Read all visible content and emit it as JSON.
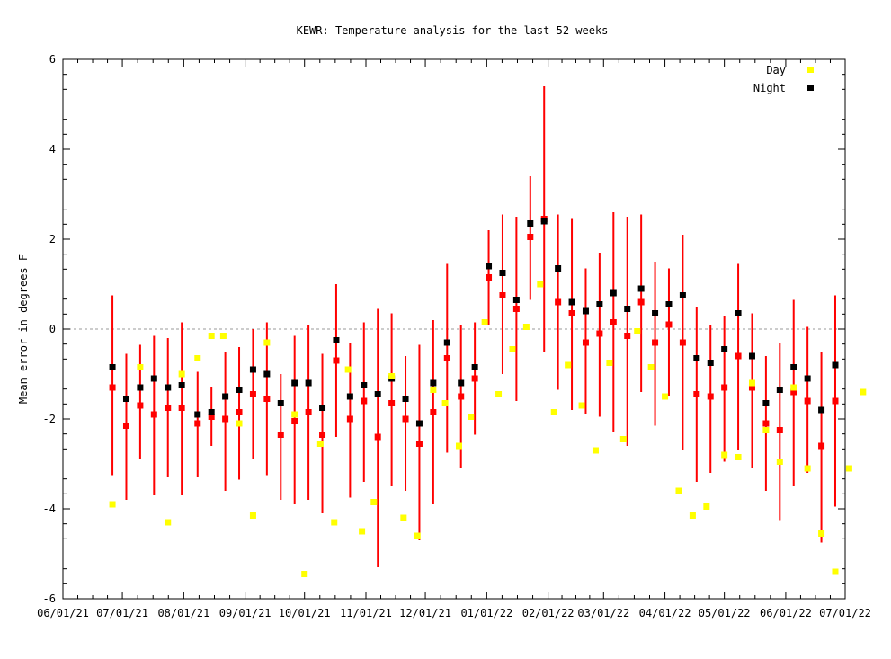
{
  "chart_data": {
    "type": "scatter",
    "title": "KEWR: Temperature analysis for the last 52 weeks",
    "ylabel": "Mean error in degrees F",
    "xlabel": "",
    "ylim": [
      -6,
      6
    ],
    "yticks": [
      -6,
      -4,
      -2,
      0,
      2,
      4,
      6
    ],
    "xlim": [
      "2021-06-01",
      "2022-07-01"
    ],
    "xticks": [
      "06/01/21",
      "07/01/21",
      "08/01/21",
      "09/01/21",
      "10/01/21",
      "11/01/21",
      "12/01/21",
      "01/01/22",
      "02/01/22",
      "03/01/22",
      "04/01/22",
      "05/01/22",
      "06/01/22",
      "07/01/22"
    ],
    "xtick_dates": [
      "2021-06-01",
      "2021-07-01",
      "2021-08-01",
      "2021-09-01",
      "2021-10-01",
      "2021-11-01",
      "2021-12-01",
      "2022-01-01",
      "2022-02-01",
      "2022-03-01",
      "2022-04-01",
      "2022-05-01",
      "2022-06-01",
      "2022-07-01"
    ],
    "zero_line": 0,
    "grid": false,
    "legend_position": "top-right",
    "colors": {
      "day": "#ffff00",
      "night": "#000000",
      "mean": "#ff0000",
      "errorbar": "#ff0000",
      "zero_line": "#999999"
    },
    "series": [
      {
        "name": "Day",
        "x": [
          "2021-06-26",
          "2021-07-10",
          "2021-07-24",
          "2021-07-31",
          "2021-08-08",
          "2021-08-15",
          "2021-08-21",
          "2021-08-29",
          "2021-09-05",
          "2021-09-12",
          "2021-09-26",
          "2021-10-01",
          "2021-10-09",
          "2021-10-16",
          "2021-10-23",
          "2021-10-30",
          "2021-11-05",
          "2021-11-14",
          "2021-11-20",
          "2021-11-27",
          "2021-12-05",
          "2021-12-11",
          "2021-12-18",
          "2021-12-24",
          "2021-12-31",
          "2022-01-07",
          "2022-01-14",
          "2022-01-21",
          "2022-01-28",
          "2022-02-04",
          "2022-02-11",
          "2022-02-18",
          "2022-02-25",
          "2022-03-04",
          "2022-03-11",
          "2022-03-18",
          "2022-03-25",
          "2022-04-01",
          "2022-04-08",
          "2022-04-15",
          "2022-04-22",
          "2022-05-01",
          "2022-05-08",
          "2022-05-15",
          "2022-05-22",
          "2022-05-29",
          "2022-06-05",
          "2022-06-12",
          "2022-06-19",
          "2022-06-26",
          "2022-07-03",
          "2022-07-10"
        ],
        "y": [
          -3.9,
          -0.85,
          -4.3,
          -1.0,
          -0.65,
          -0.15,
          -0.15,
          -2.1,
          -4.15,
          -0.3,
          -1.9,
          -5.45,
          -2.55,
          -4.3,
          -0.9,
          -4.5,
          -3.85,
          -1.05,
          -4.2,
          -4.6,
          -1.35,
          -1.65,
          -2.6,
          -1.95,
          0.15,
          -1.45,
          -0.45,
          0.05,
          1.0,
          -1.85,
          -0.8,
          -1.7,
          -2.7,
          -0.75,
          -2.45,
          -0.05,
          -0.85,
          -1.5,
          -3.6,
          -4.15,
          -3.95,
          -2.8,
          -2.85,
          -1.2,
          -2.25,
          -2.95,
          -1.3,
          -3.1,
          -4.55,
          -5.4,
          -3.1,
          -1.4
        ]
      },
      {
        "name": "Night",
        "x": [
          "2021-06-26",
          "2021-07-03",
          "2021-07-10",
          "2021-07-17",
          "2021-07-24",
          "2021-07-31",
          "2021-08-08",
          "2021-08-15",
          "2021-08-22",
          "2021-08-29",
          "2021-09-05",
          "2021-09-12",
          "2021-09-19",
          "2021-09-26",
          "2021-10-03",
          "2021-10-10",
          "2021-10-17",
          "2021-10-24",
          "2021-10-31",
          "2021-11-07",
          "2021-11-14",
          "2021-11-21",
          "2021-11-28",
          "2021-12-05",
          "2021-12-12",
          "2021-12-19",
          "2021-12-26",
          "2022-01-02",
          "2022-01-09",
          "2022-01-16",
          "2022-01-23",
          "2022-01-30",
          "2022-02-06",
          "2022-02-13",
          "2022-02-20",
          "2022-02-27",
          "2022-03-06",
          "2022-03-13",
          "2022-03-20",
          "2022-03-27",
          "2022-04-03",
          "2022-04-10",
          "2022-04-17",
          "2022-04-24",
          "2022-05-01",
          "2022-05-08",
          "2022-05-15",
          "2022-05-22",
          "2022-05-29",
          "2022-06-05",
          "2022-06-12",
          "2022-06-19",
          "2022-06-26"
        ],
        "y": [
          -0.85,
          -1.55,
          -1.3,
          -1.1,
          -1.3,
          -1.25,
          -1.9,
          -1.85,
          -1.5,
          -1.35,
          -0.9,
          -1.0,
          -1.65,
          -1.2,
          -1.2,
          -1.75,
          -0.25,
          -1.5,
          -1.25,
          -1.45,
          -1.1,
          -1.55,
          -2.1,
          -1.2,
          -0.3,
          -1.2,
          -0.85,
          1.4,
          1.25,
          0.65,
          2.35,
          2.4,
          1.35,
          0.6,
          0.4,
          0.55,
          0.8,
          0.45,
          0.9,
          0.35,
          0.55,
          0.75,
          -0.65,
          -0.75,
          -0.45,
          0.35,
          -0.6,
          -1.65,
          -1.35,
          -0.85,
          -1.1,
          -1.8,
          -0.8
        ]
      },
      {
        "name": "",
        "x": [
          "2021-06-26",
          "2021-07-03",
          "2021-07-10",
          "2021-07-17",
          "2021-07-24",
          "2021-07-31",
          "2021-08-08",
          "2021-08-15",
          "2021-08-22",
          "2021-08-29",
          "2021-09-05",
          "2021-09-12",
          "2021-09-19",
          "2021-09-26",
          "2021-10-03",
          "2021-10-10",
          "2021-10-17",
          "2021-10-24",
          "2021-10-31",
          "2021-11-07",
          "2021-11-14",
          "2021-11-21",
          "2021-11-28",
          "2021-12-05",
          "2021-12-12",
          "2021-12-19",
          "2021-12-26",
          "2022-01-02",
          "2022-01-09",
          "2022-01-16",
          "2022-01-23",
          "2022-01-30",
          "2022-02-06",
          "2022-02-13",
          "2022-02-20",
          "2022-02-27",
          "2022-03-06",
          "2022-03-13",
          "2022-03-20",
          "2022-03-27",
          "2022-04-03",
          "2022-04-10",
          "2022-04-17",
          "2022-04-24",
          "2022-05-01",
          "2022-05-08",
          "2022-05-15",
          "2022-05-22",
          "2022-05-29",
          "2022-06-05",
          "2022-06-12",
          "2022-06-19",
          "2022-06-26"
        ],
        "y": [
          -1.3,
          -2.15,
          -1.7,
          -1.9,
          -1.75,
          -1.75,
          -2.1,
          -1.95,
          -2.0,
          -1.85,
          -1.45,
          -1.55,
          -2.35,
          -2.05,
          -1.85,
          -2.35,
          -0.7,
          -2.0,
          -1.6,
          -2.4,
          -1.65,
          -2.0,
          -2.55,
          -1.85,
          -0.65,
          -1.5,
          -1.1,
          1.15,
          0.75,
          0.45,
          2.05,
          2.45,
          0.6,
          0.35,
          -0.3,
          -0.1,
          0.15,
          -0.15,
          0.6,
          -0.3,
          0.1,
          -0.3,
          -1.45,
          -1.5,
          -1.3,
          -0.6,
          -1.3,
          -2.1,
          -2.25,
          -1.4,
          -1.6,
          -2.6,
          -1.6
        ],
        "error_low": [
          -3.25,
          -3.8,
          -2.9,
          -3.7,
          -3.3,
          -3.7,
          -3.3,
          -2.6,
          -3.6,
          -3.35,
          -2.9,
          -3.25,
          -3.8,
          -3.9,
          -3.8,
          -4.1,
          -2.4,
          -3.75,
          -3.4,
          -5.3,
          -3.5,
          -3.6,
          -4.7,
          -3.9,
          -2.75,
          -3.1,
          -2.35,
          0.1,
          -1.0,
          -1.6,
          0.65,
          -0.5,
          -1.35,
          -1.8,
          -1.9,
          -1.95,
          -2.3,
          -2.6,
          -1.4,
          -2.15,
          -1.5,
          -2.7,
          -3.4,
          -3.2,
          -2.95,
          -2.7,
          -3.1,
          -3.6,
          -4.25,
          -3.5,
          -3.2,
          -4.75,
          -3.95
        ],
        "error_high": [
          0.75,
          -0.55,
          -0.35,
          -0.15,
          -0.2,
          0.15,
          -0.95,
          -1.3,
          -0.5,
          -0.4,
          0.0,
          0.15,
          -1.0,
          -0.15,
          0.1,
          -0.55,
          1.0,
          -0.3,
          0.15,
          0.45,
          0.35,
          -0.6,
          -0.35,
          0.2,
          1.45,
          0.1,
          0.15,
          2.2,
          2.55,
          2.5,
          3.4,
          5.4,
          2.55,
          2.45,
          1.35,
          1.7,
          2.6,
          2.5,
          2.55,
          1.5,
          1.35,
          2.1,
          0.5,
          0.1,
          0.3,
          1.45,
          0.35,
          -0.6,
          -0.3,
          0.65,
          0.05,
          -0.5,
          0.75
        ]
      }
    ]
  }
}
